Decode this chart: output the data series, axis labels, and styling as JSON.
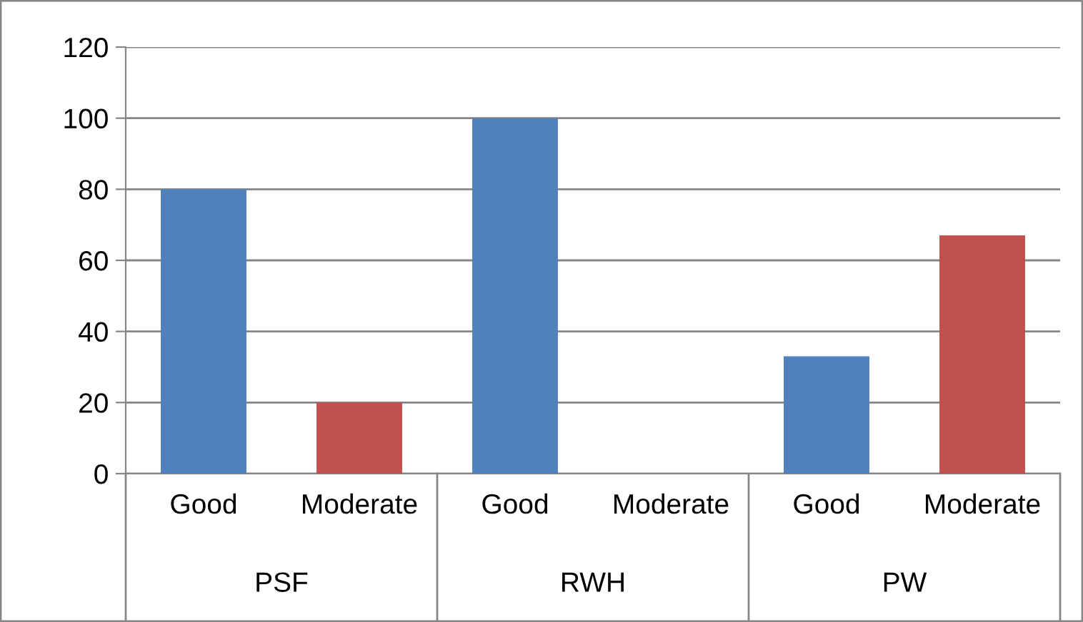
{
  "chart_data": {
    "type": "bar",
    "categories": [
      "Good",
      "Moderate",
      "Good",
      "Moderate",
      "Good",
      "Moderate"
    ],
    "values": [
      80,
      20,
      100,
      0,
      33,
      67
    ],
    "colors": [
      "#4f81bd",
      "#c0504d",
      "#4f81bd",
      "#c0504d",
      "#4f81bd",
      "#c0504d"
    ],
    "ylim": [
      0,
      120
    ],
    "yticks": [
      0,
      20,
      40,
      60,
      80,
      100,
      120
    ],
    "grid": "y",
    "legend": false,
    "annotations": [
      "PSF",
      "RWH",
      "PW"
    ]
  }
}
